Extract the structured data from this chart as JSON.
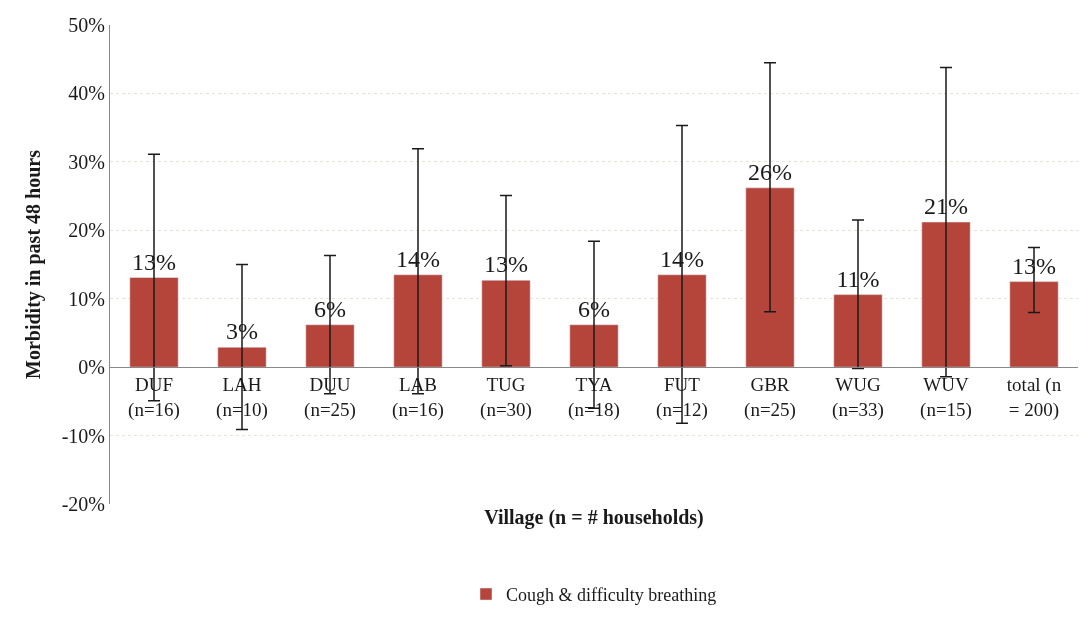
{
  "chart_data": {
    "type": "bar",
    "xlabel": "Village (n = # households)",
    "ylabel": "Morbidity in past 48 hours",
    "categories": [
      "DUF\n(n=16)",
      "LAH\n(n=10)",
      "DUU\n(n=25)",
      "LAB\n(n=16)",
      "TUG\n(n=30)",
      "TYA\n(n=18)",
      "FUT\n(n=12)",
      "GBR\n(n=25)",
      "WUG\n(n=33)",
      "WUV\n(n=15)",
      "total (n\n= 200)"
    ],
    "series": [
      {
        "name": "Cough & difficulty breathing",
        "color": "#b5453a",
        "values": [
          13.1,
          2.9,
          6.2,
          13.5,
          12.7,
          6.2,
          13.5,
          26.2,
          10.6,
          21.2,
          12.5
        ],
        "value_labels": [
          "13%",
          "3%",
          "6%",
          "14%",
          "13%",
          "6%",
          "14%",
          "26%",
          "11%",
          "21%",
          "13%"
        ],
        "errors": [
          [
            -4.9,
            31.1
          ],
          [
            -9.1,
            15.0
          ],
          [
            -3.9,
            16.3
          ],
          [
            -3.9,
            31.9
          ],
          [
            0.2,
            25.1
          ],
          [
            -6.0,
            18.4
          ],
          [
            -8.2,
            35.3
          ],
          [
            8.1,
            44.5
          ],
          [
            -0.2,
            21.5
          ],
          [
            -1.4,
            43.8
          ],
          [
            8.0,
            17.5
          ]
        ]
      }
    ],
    "ylim": [
      -20,
      50
    ],
    "yticks": [
      {
        "value": -20,
        "label": "-20%"
      },
      {
        "value": -10,
        "label": "-10%"
      },
      {
        "value": 0,
        "label": "0%"
      },
      {
        "value": 10,
        "label": "10%"
      },
      {
        "value": 20,
        "label": "20%"
      },
      {
        "value": 30,
        "label": "30%"
      },
      {
        "value": 40,
        "label": "40%"
      },
      {
        "value": 50,
        "label": "50%"
      }
    ],
    "grid": "y",
    "legend": "bottom"
  }
}
